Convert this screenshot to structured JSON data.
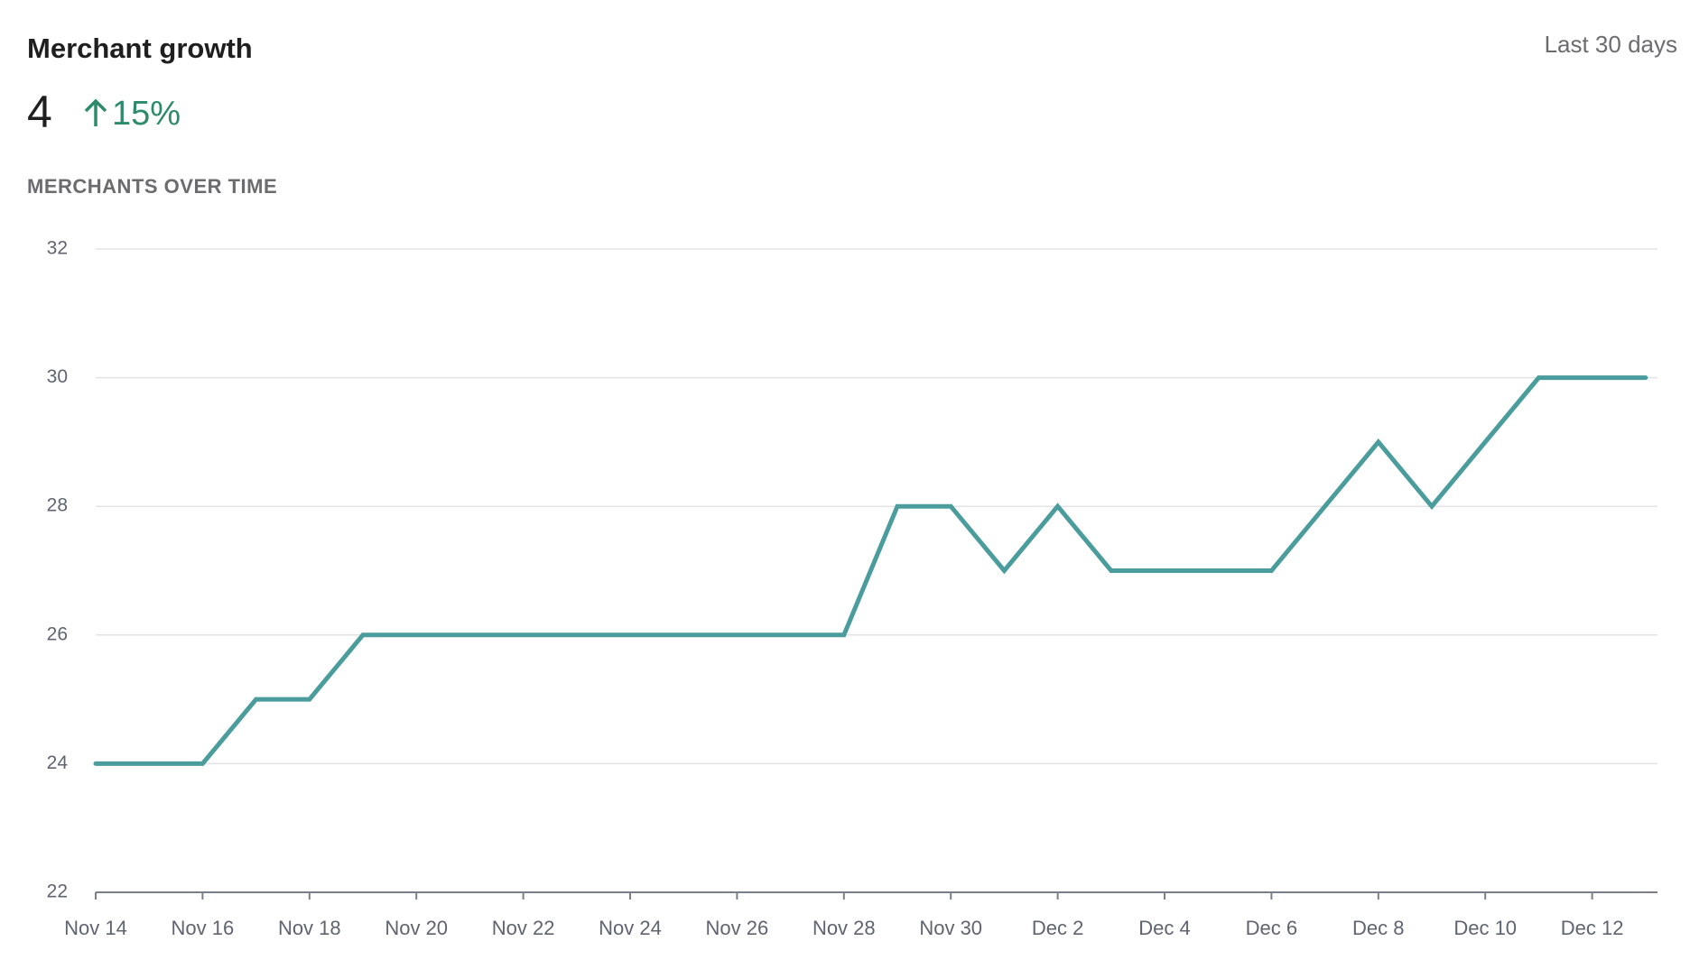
{
  "chart_data": {
    "type": "line",
    "title": "Merchant growth",
    "period": "Last 30 days",
    "metric": "4",
    "change": "15%",
    "subtitle": "MERCHANTS OVER TIME",
    "categories": [
      "Nov 14",
      null,
      "Nov 16",
      null,
      "Nov 18",
      null,
      "Nov 20",
      null,
      "Nov 22",
      null,
      "Nov 24",
      null,
      "Nov 26",
      null,
      "Nov 28",
      null,
      "Nov 30",
      null,
      "Dec 2",
      null,
      "Dec 4",
      null,
      "Dec 6",
      null,
      "Dec 8",
      null,
      "Dec 10",
      null,
      "Dec 12",
      null
    ],
    "series": [
      {
        "name": "Merchants",
        "color": "#4a9d9c",
        "values": [
          24,
          24,
          24,
          25,
          25,
          26,
          26,
          26,
          26,
          26,
          26,
          26,
          26,
          26,
          26,
          28,
          28,
          27,
          28,
          27,
          27,
          27,
          27,
          28,
          29,
          28,
          29,
          30,
          30,
          30
        ]
      }
    ],
    "ylim": [
      22,
      32
    ],
    "yticks": [
      22,
      24,
      26,
      28,
      30,
      32
    ],
    "grid": true
  }
}
